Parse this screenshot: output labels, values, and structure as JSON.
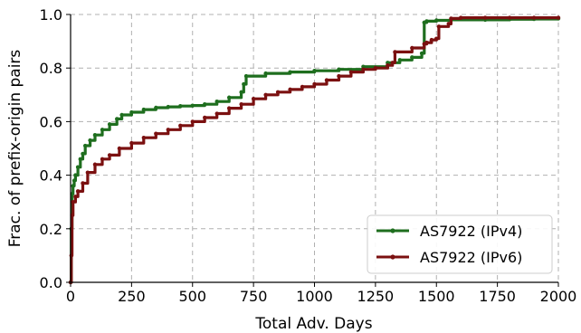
{
  "chart_data": {
    "type": "line",
    "title": "",
    "xlabel": "Total Adv. Days",
    "ylabel": "Frac. of prefix-origin pairs",
    "xlim": [
      0,
      2000
    ],
    "ylim": [
      0.0,
      1.0
    ],
    "xticks": [
      0,
      250,
      500,
      750,
      1000,
      1250,
      1500,
      1750,
      2000
    ],
    "xtick_labels": [
      "0",
      "250",
      "500",
      "750",
      "1000",
      "1250",
      "1500",
      "1750",
      "2000"
    ],
    "yticks": [
      0.0,
      0.2,
      0.4,
      0.6,
      0.8,
      1.0
    ],
    "ytick_labels": [
      "0.0",
      "0.2",
      "0.4",
      "0.6",
      "0.8",
      "1.0"
    ],
    "grid": true,
    "legend_position": "lower-right",
    "series": [
      {
        "name": "AS7922 (IPv4)",
        "color": "#1e6e1e",
        "x": [
          0,
          3,
          6,
          10,
          15,
          20,
          30,
          40,
          50,
          60,
          80,
          100,
          130,
          160,
          190,
          210,
          250,
          300,
          350,
          400,
          450,
          500,
          550,
          600,
          650,
          700,
          710,
          720,
          800,
          900,
          1000,
          1100,
          1200,
          1300,
          1350,
          1400,
          1440,
          1450,
          1460,
          1500,
          1560,
          1700,
          1800,
          1900,
          2000
        ],
        "y": [
          0.0,
          0.2,
          0.33,
          0.36,
          0.38,
          0.4,
          0.43,
          0.46,
          0.48,
          0.51,
          0.53,
          0.55,
          0.57,
          0.59,
          0.61,
          0.625,
          0.635,
          0.645,
          0.652,
          0.655,
          0.658,
          0.66,
          0.665,
          0.675,
          0.69,
          0.71,
          0.74,
          0.77,
          0.78,
          0.785,
          0.79,
          0.795,
          0.805,
          0.82,
          0.83,
          0.84,
          0.855,
          0.97,
          0.975,
          0.978,
          0.98,
          0.98,
          0.982,
          0.983,
          0.985
        ]
      },
      {
        "name": "AS7922 (IPv6)",
        "color": "#7b1010",
        "x": [
          0,
          3,
          6,
          10,
          20,
          30,
          50,
          70,
          100,
          130,
          160,
          200,
          250,
          300,
          350,
          400,
          450,
          500,
          550,
          600,
          650,
          700,
          750,
          800,
          850,
          900,
          950,
          1000,
          1050,
          1100,
          1150,
          1200,
          1250,
          1300,
          1320,
          1330,
          1400,
          1450,
          1460,
          1480,
          1500,
          1510,
          1550,
          1560,
          1600,
          1700,
          1800,
          1900,
          2000
        ],
        "y": [
          0.0,
          0.1,
          0.25,
          0.3,
          0.32,
          0.34,
          0.37,
          0.41,
          0.44,
          0.46,
          0.475,
          0.5,
          0.52,
          0.54,
          0.555,
          0.57,
          0.585,
          0.6,
          0.615,
          0.63,
          0.65,
          0.665,
          0.685,
          0.7,
          0.71,
          0.72,
          0.73,
          0.74,
          0.755,
          0.77,
          0.785,
          0.795,
          0.8,
          0.81,
          0.82,
          0.86,
          0.875,
          0.89,
          0.895,
          0.905,
          0.91,
          0.955,
          0.965,
          0.985,
          0.988,
          0.988,
          0.988,
          0.988,
          0.988
        ]
      }
    ]
  }
}
